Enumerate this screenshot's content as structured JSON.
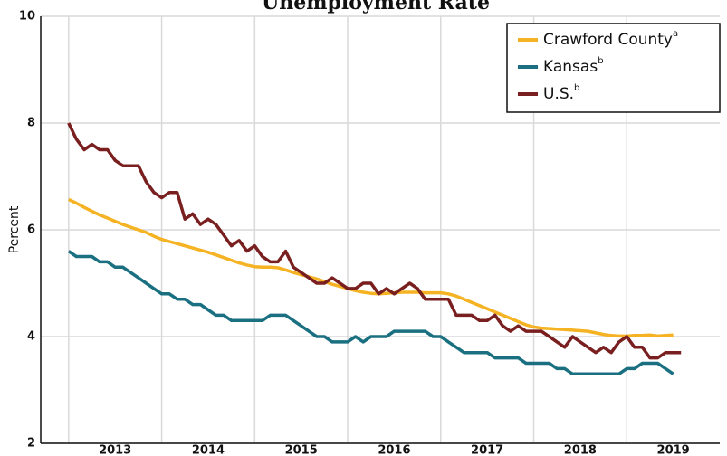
{
  "chart_data": {
    "type": "line",
    "title": "Unemployment Rate",
    "y_label": "Percent",
    "xlim": [
      2012.7,
      2020
    ],
    "xticks": [
      2013,
      2014,
      2015,
      2016,
      2017,
      2018,
      2019
    ],
    "ylim": [
      2,
      10
    ],
    "yticks": [
      2,
      4,
      6,
      8,
      10
    ],
    "grid": true,
    "legend": "upper right",
    "x": [
      2013,
      2013.083,
      2013.167,
      2013.25,
      2013.333,
      2013.417,
      2013.5,
      2013.583,
      2013.667,
      2013.75,
      2013.833,
      2013.917,
      2014,
      2014.083,
      2014.167,
      2014.25,
      2014.333,
      2014.417,
      2014.5,
      2014.583,
      2014.667,
      2014.75,
      2014.833,
      2014.917,
      2015,
      2015.083,
      2015.167,
      2015.25,
      2015.333,
      2015.417,
      2015.5,
      2015.583,
      2015.667,
      2015.75,
      2015.833,
      2015.917,
      2016,
      2016.083,
      2016.167,
      2016.25,
      2016.333,
      2016.417,
      2016.5,
      2016.583,
      2016.667,
      2016.75,
      2016.833,
      2016.917,
      2017,
      2017.083,
      2017.167,
      2017.25,
      2017.333,
      2017.417,
      2017.5,
      2017.583,
      2017.667,
      2017.75,
      2017.833,
      2017.917,
      2018,
      2018.083,
      2018.167,
      2018.25,
      2018.333,
      2018.417,
      2018.5,
      2018.583,
      2018.667,
      2018.75,
      2018.833,
      2018.917,
      2019,
      2019.083,
      2019.167,
      2019.25,
      2019.333,
      2019.417,
      2019.5,
      2019.583
    ],
    "series": [
      {
        "name": "Crawford County",
        "note": "a",
        "color": "#f5b323",
        "values": [
          6.57,
          6.5,
          6.42,
          6.35,
          6.28,
          6.22,
          6.16,
          6.1,
          6.05,
          6.0,
          5.95,
          5.88,
          5.82,
          5.78,
          5.74,
          5.7,
          5.66,
          5.62,
          5.58,
          5.53,
          5.48,
          5.43,
          5.38,
          5.34,
          5.31,
          5.3,
          5.3,
          5.29,
          5.25,
          5.2,
          5.16,
          5.12,
          5.08,
          5.03,
          4.98,
          4.94,
          4.9,
          4.86,
          4.83,
          4.81,
          4.8,
          4.81,
          4.82,
          4.83,
          4.83,
          4.83,
          4.82,
          4.82,
          4.82,
          4.8,
          4.76,
          4.7,
          4.64,
          4.58,
          4.52,
          4.46,
          4.4,
          4.34,
          4.28,
          4.22,
          4.18,
          4.16,
          4.15,
          4.14,
          4.13,
          4.12,
          4.11,
          4.1,
          4.07,
          4.04,
          4.02,
          4.01,
          4.01,
          4.02,
          4.02,
          4.03,
          4.01,
          4.02,
          4.03,
          null
        ]
      },
      {
        "name": "Kansas",
        "note": "b",
        "color": "#1a7080",
        "values": [
          5.6,
          5.5,
          5.5,
          5.5,
          5.4,
          5.4,
          5.3,
          5.3,
          5.2,
          5.1,
          5.0,
          4.9,
          4.8,
          4.8,
          4.7,
          4.7,
          4.6,
          4.6,
          4.5,
          4.4,
          4.4,
          4.3,
          4.3,
          4.3,
          4.3,
          4.3,
          4.4,
          4.4,
          4.4,
          4.3,
          4.2,
          4.1,
          4.0,
          4.0,
          3.9,
          3.9,
          3.9,
          4.0,
          3.9,
          4.0,
          4.0,
          4.0,
          4.1,
          4.1,
          4.1,
          4.1,
          4.1,
          4.0,
          4.0,
          3.9,
          3.8,
          3.7,
          3.7,
          3.7,
          3.7,
          3.6,
          3.6,
          3.6,
          3.6,
          3.5,
          3.5,
          3.5,
          3.5,
          3.4,
          3.4,
          3.3,
          3.3,
          3.3,
          3.3,
          3.3,
          3.3,
          3.3,
          3.4,
          3.4,
          3.5,
          3.5,
          3.5,
          3.4,
          3.3,
          null
        ]
      },
      {
        "name": "U.S.",
        "note": "b",
        "color": "#7a1f1f",
        "values": [
          8.0,
          7.7,
          7.5,
          7.6,
          7.5,
          7.5,
          7.3,
          7.2,
          7.2,
          7.2,
          6.9,
          6.7,
          6.6,
          6.7,
          6.7,
          6.2,
          6.3,
          6.1,
          6.2,
          6.1,
          5.9,
          5.7,
          5.8,
          5.6,
          5.7,
          5.5,
          5.4,
          5.4,
          5.6,
          5.3,
          5.2,
          5.1,
          5.0,
          5.0,
          5.1,
          5.0,
          4.9,
          4.9,
          5.0,
          5.0,
          4.8,
          4.9,
          4.8,
          4.9,
          5.0,
          4.9,
          4.7,
          4.7,
          4.7,
          4.7,
          4.4,
          4.4,
          4.4,
          4.3,
          4.3,
          4.4,
          4.2,
          4.1,
          4.2,
          4.1,
          4.1,
          4.1,
          4.0,
          3.9,
          3.8,
          4.0,
          3.9,
          3.8,
          3.7,
          3.8,
          3.7,
          3.9,
          4.0,
          3.8,
          3.8,
          3.6,
          3.6,
          3.7,
          3.7,
          3.7
        ]
      }
    ]
  }
}
